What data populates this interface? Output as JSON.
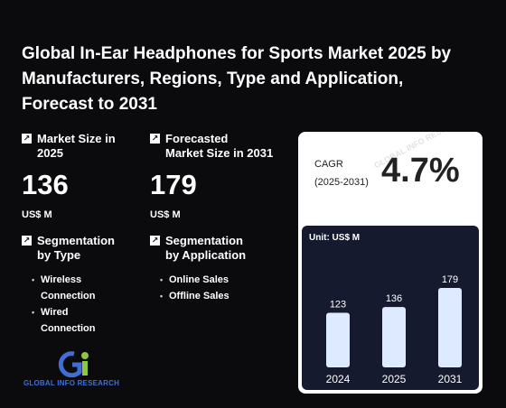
{
  "title": "Global In-Ear Headphones for Sports Market 2025 by Manufacturers, Regions, Type and Application, Forecast to 2031",
  "market_size": {
    "label_line1": "Market Size in",
    "label_line2": "2025",
    "value": "136",
    "unit": "US$ M"
  },
  "forecast_size": {
    "label_line1": "Forecasted",
    "label_line2": "Market Size in 2031",
    "value": "179",
    "unit": "US$ M"
  },
  "segmentation_type": {
    "label_line1": "Segmentation",
    "label_line2": "by Type",
    "items": [
      "Wireless",
      "Connection",
      "Wired",
      "Connection"
    ]
  },
  "segmentation_application": {
    "label_line1": "Segmentation",
    "label_line2": "by Application",
    "items": [
      "Online Sales",
      "Offline Sales"
    ]
  },
  "cagr": {
    "label_line1": "CAGR",
    "label_line2": "(2025-2031)",
    "value": "4.7%"
  },
  "logo": {
    "text": "GLOBAL INFO RESEARCH",
    "watermark": "GLOBAL INFO RESEARCH"
  },
  "colors": {
    "background": "#0b0b0d",
    "chart_panel": "#161a2e",
    "bar": "#deeaff",
    "logo_blue": "#3f6fd6",
    "logo_green": "#8dc63f"
  },
  "chart_data": {
    "type": "bar",
    "unit_label": "Unit: US$ M",
    "categories": [
      "2024",
      "2025",
      "2031"
    ],
    "values": [
      123,
      136,
      179
    ],
    "ylim": [
      0,
      179
    ]
  }
}
